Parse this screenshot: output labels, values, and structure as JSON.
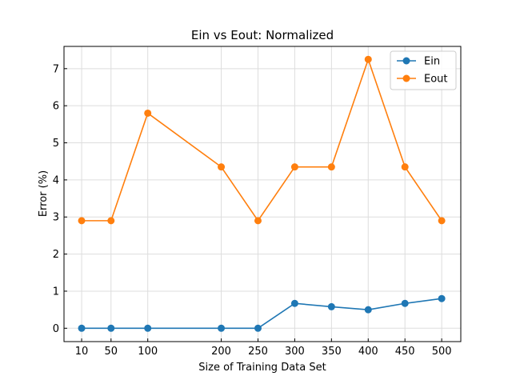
{
  "chart_data": {
    "type": "line",
    "title": "Ein vs Eout: Normalized",
    "xlabel": "Size of Training Data Set",
    "ylabel": "Error (%)",
    "x": [
      10,
      50,
      100,
      200,
      250,
      300,
      350,
      400,
      450,
      500
    ],
    "x_ticks": [
      "10",
      "50",
      "100",
      "200",
      "250",
      "300",
      "350",
      "400",
      "450",
      "500"
    ],
    "y_ticks": [
      "0",
      "1",
      "2",
      "3",
      "4",
      "5",
      "6",
      "7"
    ],
    "xlim": [
      -14,
      526
    ],
    "ylim": [
      -0.36,
      7.6
    ],
    "grid": true,
    "legend_position": "top-right",
    "series": [
      {
        "name": "Ein",
        "color": "#1f77b4",
        "marker": "circle",
        "values": [
          0,
          0,
          0,
          0,
          0,
          0.67,
          0.58,
          0.5,
          0.67,
          0.8
        ]
      },
      {
        "name": "Eout",
        "color": "#ff7f0e",
        "marker": "circle",
        "values": [
          2.9,
          2.9,
          5.8,
          4.35,
          2.9,
          4.35,
          4.35,
          7.25,
          4.35,
          2.9
        ]
      }
    ]
  }
}
